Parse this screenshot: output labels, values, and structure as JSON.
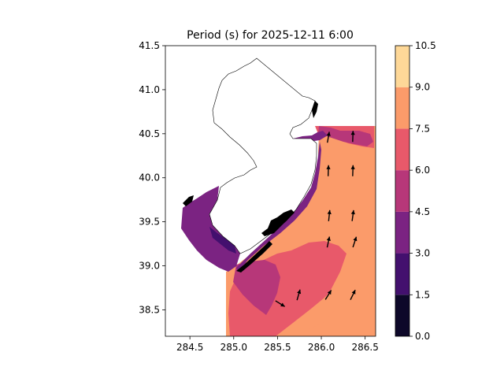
{
  "chart_data": {
    "type": "contourf-map",
    "title": "Period (s) for 2025-12-11 6:00",
    "xlabel": "",
    "ylabel": "",
    "xlim": [
      284.22,
      286.62
    ],
    "ylim": [
      38.2,
      41.5
    ],
    "x_ticks": [
      "284.5",
      "285.0",
      "285.5",
      "286.0",
      "286.5"
    ],
    "y_ticks": [
      "38.5",
      "39.0",
      "39.5",
      "40.0",
      "40.5",
      "41.0",
      "41.5"
    ],
    "colorbar": {
      "levels": [
        0.0,
        1.5,
        3.0,
        4.5,
        6.0,
        7.5,
        9.0,
        10.5
      ],
      "tick_labels": [
        "0.0",
        "1.5",
        "3.0",
        "4.5",
        "6.0",
        "7.5",
        "9.0",
        "10.5"
      ],
      "colors": [
        "#0d0829",
        "#43106e",
        "#7b2382",
        "#b73779",
        "#e8596a",
        "#fb9b6a",
        "#fed898"
      ]
    },
    "dominant_value_band": [
      7.5,
      9.0
    ],
    "vectors": [
      {
        "lon": 286.08,
        "lat": 40.46,
        "angle_deg": 80
      },
      {
        "lon": 286.36,
        "lat": 40.47,
        "angle_deg": 88
      },
      {
        "lon": 286.08,
        "lat": 40.08,
        "angle_deg": 88
      },
      {
        "lon": 286.36,
        "lat": 40.08,
        "angle_deg": 88
      },
      {
        "lon": 286.09,
        "lat": 39.57,
        "angle_deg": 84
      },
      {
        "lon": 286.36,
        "lat": 39.57,
        "angle_deg": 82
      },
      {
        "lon": 286.08,
        "lat": 39.27,
        "angle_deg": 78
      },
      {
        "lon": 286.38,
        "lat": 39.27,
        "angle_deg": 72
      },
      {
        "lon": 285.53,
        "lat": 38.57,
        "angle_deg": -32
      },
      {
        "lon": 285.74,
        "lat": 38.67,
        "angle_deg": 74
      },
      {
        "lon": 286.08,
        "lat": 38.67,
        "angle_deg": 58
      },
      {
        "lon": 286.36,
        "lat": 38.67,
        "angle_deg": 64
      }
    ]
  }
}
